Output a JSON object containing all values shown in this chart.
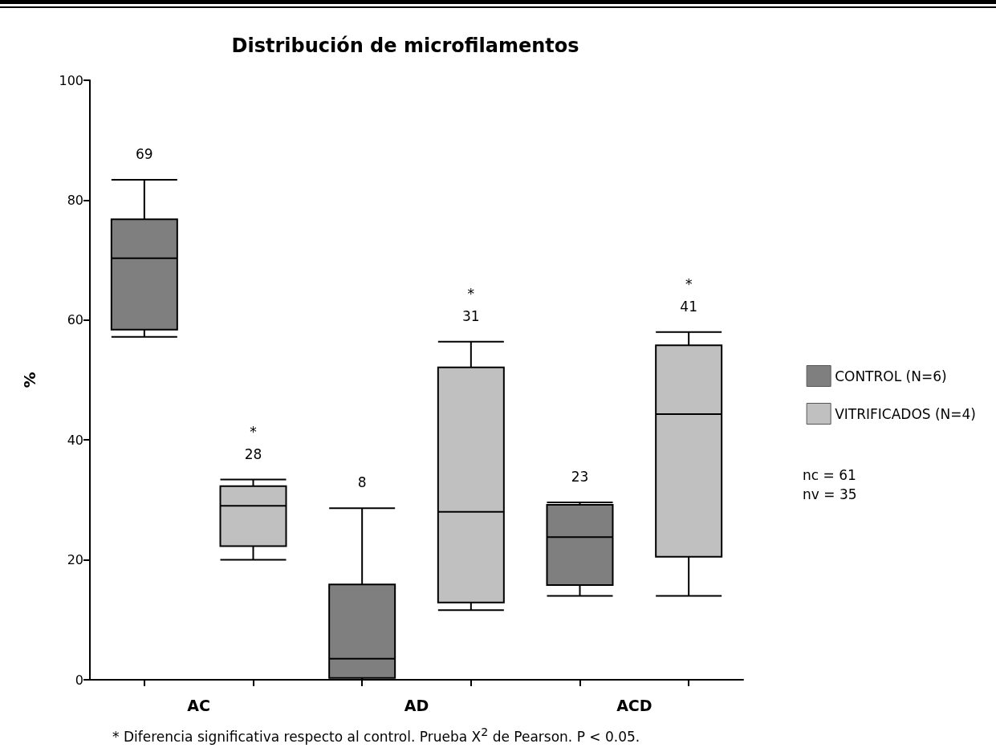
{
  "chart_data": {
    "type": "box",
    "title": "Distribución de microfilamentos",
    "ylabel": "%",
    "categories": [
      "AC",
      "AD",
      "ACD"
    ],
    "series": [
      {
        "name": "CONTROL (N=6)",
        "color": "#7f7f7f",
        "boxes": [
          {
            "low": 57.2,
            "q1": 58.4,
            "median": 70.3,
            "q3": 76.8,
            "high": 83.4
          },
          {
            "low": 0,
            "q1": 0.3,
            "median": 3.5,
            "q3": 15.9,
            "high": 28.6
          },
          {
            "low": 14.0,
            "q1": 15.8,
            "median": 23.8,
            "q3": 29.2,
            "high": 29.6
          }
        ],
        "value_labels": [
          "69",
          "8",
          "23"
        ]
      },
      {
        "name": "VITRIFICADOS (N=4)",
        "color": "#c0c0c0",
        "boxes": [
          {
            "low": 20.0,
            "q1": 22.3,
            "median": 29.0,
            "q3": 32.3,
            "high": 33.4
          },
          {
            "low": 11.6,
            "q1": 12.9,
            "median": 28.0,
            "q3": 52.1,
            "high": 56.4
          },
          {
            "low": 14.0,
            "q1": 20.5,
            "median": 44.3,
            "q3": 55.8,
            "high": 58.0
          }
        ],
        "value_labels": [
          "*\n28",
          "*\n31",
          "*\n41"
        ]
      }
    ],
    "ylim": [
      0,
      100
    ],
    "yticks": [
      0,
      20,
      40,
      60,
      80,
      100
    ],
    "legend": "right",
    "annotations": [
      "nc = 61\nnv = 35",
      "* Diferencia significativa respecto al control. Prueba X$^{2}$ de Pearson. P < 0.05."
    ]
  }
}
